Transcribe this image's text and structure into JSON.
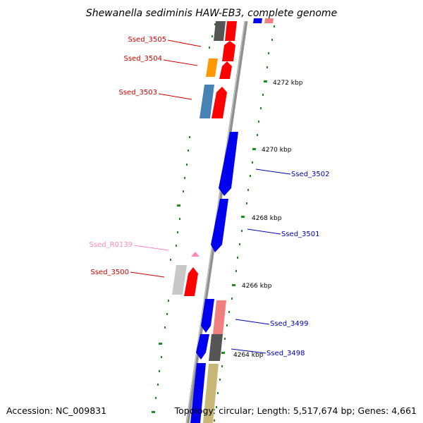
{
  "title": "Shewanella sediminis HAW-EB3, complete genome",
  "footer": {
    "accession": "Accession: NC_009831",
    "topology": "Topology: circular; Length: 5,517,674 bp; Genes: 4,661"
  },
  "scale_labels": [
    "4272 kbp",
    "4270 kbp",
    "4268 kbp",
    "4266 kbp",
    "4264 kbp"
  ],
  "gene_labels": [
    {
      "name": "Ssed_3505",
      "color": "#cc0000"
    },
    {
      "name": "Ssed_3504",
      "color": "#cc0000"
    },
    {
      "name": "Ssed_3503",
      "color": "#cc0000"
    },
    {
      "name": "Ssed_3502",
      "color": "#0000aa"
    },
    {
      "name": "Ssed_3501",
      "color": "#0000aa"
    },
    {
      "name": "Ssed_R0139",
      "color": "#ff88bb"
    },
    {
      "name": "Ssed_3500",
      "color": "#cc0000"
    },
    {
      "name": "Ssed_3499",
      "color": "#0000aa"
    },
    {
      "name": "Ssed_3498",
      "color": "#0000aa"
    }
  ],
  "colors": {
    "backbone": "#888888",
    "forward_cds": "#ff0000",
    "reverse_cds": "#0000ee",
    "tick": "#228b22"
  }
}
